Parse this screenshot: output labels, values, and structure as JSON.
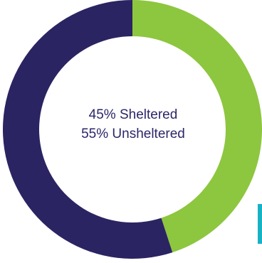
{
  "chart_data": {
    "type": "pie",
    "variant": "donut",
    "categories": [
      "Sheltered",
      "Unsheltered"
    ],
    "values": [
      45,
      55
    ],
    "colors": [
      "#8dc63f",
      "#2b2462"
    ],
    "center_text": [
      "45% Sheltered",
      "55% Unsheltered"
    ],
    "start_angle": "12 o'clock",
    "direction": "clockwise",
    "legend": "none"
  },
  "colors": {
    "text": "#2b2669",
    "edge_mark": "#17b2c4"
  }
}
